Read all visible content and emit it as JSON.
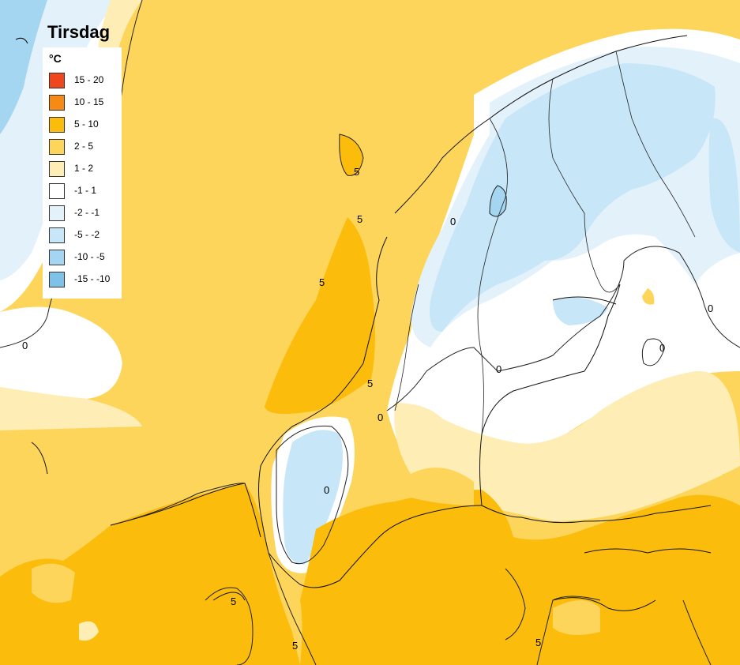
{
  "title": "Tirsdag",
  "legend": {
    "unit": "°C",
    "items": [
      {
        "label": "15 - 20",
        "color": "#f0461e"
      },
      {
        "label": "10 - 15",
        "color": "#f78a14"
      },
      {
        "label": "5 - 10",
        "color": "#fbbc0c"
      },
      {
        "label": "2 - 5",
        "color": "#fdd55a"
      },
      {
        "label": "1 - 2",
        "color": "#feeeb5"
      },
      {
        "label": "-1 - 1",
        "color": "#ffffff"
      },
      {
        "label": "-2 - -1",
        "color": "#e3f1fb"
      },
      {
        "label": "-5 - -2",
        "color": "#c7e6f7"
      },
      {
        "label": "-10 - -5",
        "color": "#a4d6f1"
      },
      {
        "label": "-15 - -10",
        "color": "#7fc2e9"
      }
    ]
  },
  "contour_labels": [
    "0",
    "0",
    "0",
    "0",
    "0",
    "0",
    "0",
    "5",
    "5",
    "5",
    "5",
    "5",
    "5",
    "5"
  ]
}
